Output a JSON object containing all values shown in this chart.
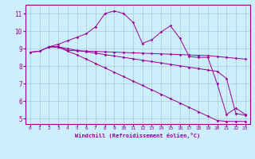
{
  "xlabel": "Windchill (Refroidissement éolien,°C)",
  "background_color": "#cceeff",
  "line_color": "#990099",
  "grid_color": "#aacccc",
  "ylim": [
    4.7,
    11.5
  ],
  "xlim": [
    -0.5,
    23.5
  ],
  "yticks": [
    5,
    6,
    7,
    8,
    9,
    10,
    11
  ],
  "xticks": [
    0,
    1,
    2,
    3,
    4,
    5,
    6,
    7,
    8,
    9,
    10,
    11,
    12,
    13,
    14,
    15,
    16,
    17,
    18,
    19,
    20,
    21,
    22,
    23
  ],
  "line1_x": [
    0,
    1,
    2,
    3,
    4,
    5,
    6,
    7,
    8,
    9,
    10,
    11,
    12,
    13,
    14,
    15,
    16,
    17,
    18,
    19,
    20,
    21,
    22,
    23
  ],
  "line1_y": [
    8.8,
    8.85,
    9.1,
    9.25,
    9.45,
    9.65,
    9.85,
    10.25,
    11.0,
    11.15,
    11.0,
    10.5,
    9.3,
    9.5,
    9.95,
    10.3,
    9.6,
    8.55,
    8.5,
    8.5,
    7.0,
    5.25,
    5.6,
    5.25
  ],
  "line2_x": [
    0,
    1,
    2,
    3,
    4,
    5,
    6,
    7,
    8,
    9,
    10,
    11,
    12,
    13,
    14,
    15,
    16,
    17,
    18,
    19,
    20,
    21,
    22,
    23
  ],
  "line2_y": [
    8.8,
    8.85,
    9.1,
    9.1,
    8.9,
    8.88,
    8.86,
    8.84,
    8.82,
    8.8,
    8.78,
    8.76,
    8.74,
    8.72,
    8.7,
    8.68,
    8.66,
    8.64,
    8.62,
    8.6,
    8.55,
    8.5,
    8.45,
    8.4
  ],
  "line3_x": [
    2,
    3,
    4,
    5,
    6,
    7,
    8,
    9,
    10,
    11,
    12,
    13,
    14,
    15,
    16,
    17,
    18,
    19,
    20,
    21,
    22,
    23
  ],
  "line3_y": [
    9.1,
    9.1,
    8.85,
    8.65,
    8.4,
    8.15,
    7.9,
    7.65,
    7.4,
    7.15,
    6.9,
    6.65,
    6.4,
    6.15,
    5.9,
    5.65,
    5.4,
    5.15,
    4.9,
    4.85,
    4.85,
    4.85
  ],
  "line4_x": [
    2,
    3,
    4,
    5,
    6,
    7,
    8,
    9,
    10,
    11,
    12,
    13,
    14,
    15,
    16,
    17,
    18,
    19,
    20,
    21,
    22,
    23
  ],
  "line4_y": [
    9.1,
    9.1,
    9.0,
    8.9,
    8.82,
    8.74,
    8.66,
    8.58,
    8.5,
    8.42,
    8.34,
    8.26,
    8.18,
    8.1,
    8.02,
    7.94,
    7.86,
    7.78,
    7.7,
    7.3,
    5.3,
    5.2
  ]
}
